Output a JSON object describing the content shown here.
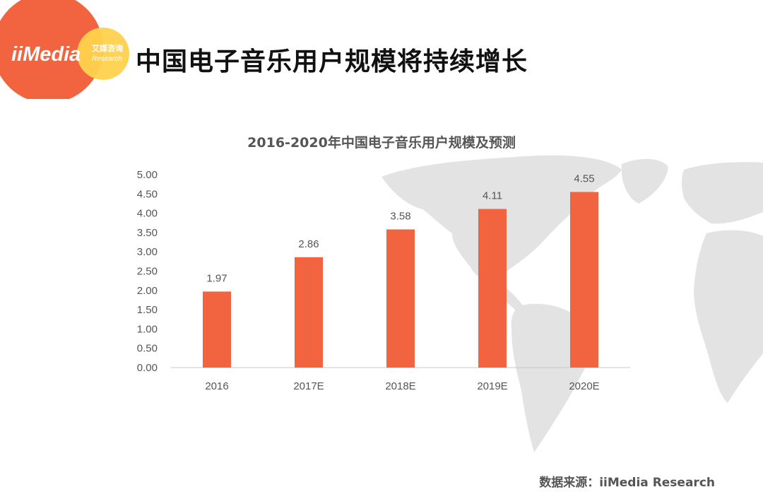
{
  "header": {
    "title": "中国电子音乐用户规模将持续增长",
    "logo": {
      "brand": "iiMedia",
      "cn": "艾媒咨询",
      "en": "Research"
    }
  },
  "colors": {
    "bar": "#f26440",
    "logo_orange": "#f26440",
    "logo_yellow": "#ffd24d",
    "map": "#e3e3e3",
    "axis_text": "#555555"
  },
  "chart_data": {
    "type": "bar",
    "title": "2016-2020年中国电子音乐用户规模及预测",
    "categories": [
      "2016",
      "2017E",
      "2018E",
      "2019E",
      "2020E"
    ],
    "values": [
      1.97,
      2.86,
      3.58,
      4.11,
      4.55
    ],
    "value_labels": [
      "1.97",
      "2.86",
      "3.58",
      "4.11",
      "4.55"
    ],
    "yticks": [
      "0.00",
      "0.50",
      "1.00",
      "1.50",
      "2.00",
      "2.50",
      "3.00",
      "3.50",
      "4.00",
      "4.50",
      "5.00"
    ],
    "ylim": [
      0,
      5
    ],
    "xlabel": "",
    "ylabel": "",
    "grid": false,
    "legend": "none"
  },
  "footer": {
    "source": "数据来源：iiMedia Research"
  }
}
